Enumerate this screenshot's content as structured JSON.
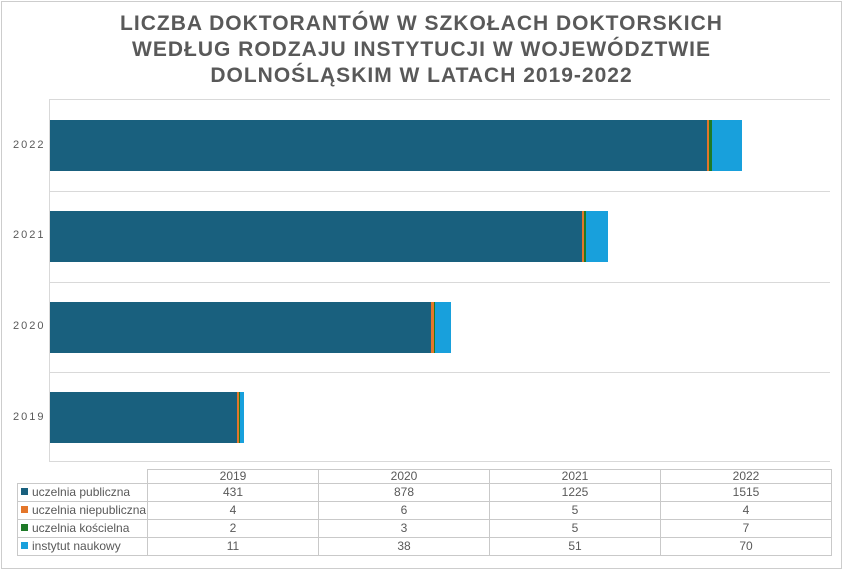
{
  "title_lines": [
    "LICZBA DOKTORANTÓW W SZKOŁACH DOKTORSKICH",
    "WEDŁUG RODZAJU INSTYTUCJI W WOJEWÓDZTWIE",
    "DOLNOŚLĄSKIM W LATACH 2019-2022"
  ],
  "chart_data": {
    "type": "bar",
    "orientation": "horizontal",
    "stacked": true,
    "categories": [
      "2019",
      "2020",
      "2021",
      "2022"
    ],
    "bar_order_top_to_bottom": [
      "2022",
      "2021",
      "2020",
      "2019"
    ],
    "series": [
      {
        "name": "uczelnia publiczna",
        "color": "#19607e",
        "values": [
          431,
          878,
          1225,
          1515
        ]
      },
      {
        "name": "uczelnia niepubliczna",
        "color": "#e4762a",
        "values": [
          4,
          6,
          5,
          4
        ]
      },
      {
        "name": "uczelnia kościelna",
        "color": "#1e7a28",
        "values": [
          2,
          3,
          5,
          7
        ]
      },
      {
        "name": "instytut naukowy",
        "color": "#18a0dc",
        "values": [
          11,
          38,
          51,
          70
        ]
      }
    ],
    "xlim": [
      0,
      1800
    ],
    "x_axis_ticks_visible": false,
    "grid": "horizontal-row-separators",
    "gridline_color": "#d9d9d9",
    "text_color": "#595959",
    "legend_position": "data-table-below-chart"
  },
  "table": {
    "column_headers": [
      "",
      "2019",
      "2020",
      "2021",
      "2022"
    ],
    "rows": [
      {
        "label": "uczelnia publiczna",
        "values": [
          "431",
          "878",
          "1225",
          "1515"
        ]
      },
      {
        "label": "uczelnia niepubliczna",
        "values": [
          "4",
          "6",
          "5",
          "4"
        ]
      },
      {
        "label": "uczelnia kościelna",
        "values": [
          "2",
          "3",
          "5",
          "7"
        ]
      },
      {
        "label": "instytut naukowy",
        "values": [
          "11",
          "38",
          "51",
          "70"
        ]
      }
    ]
  }
}
